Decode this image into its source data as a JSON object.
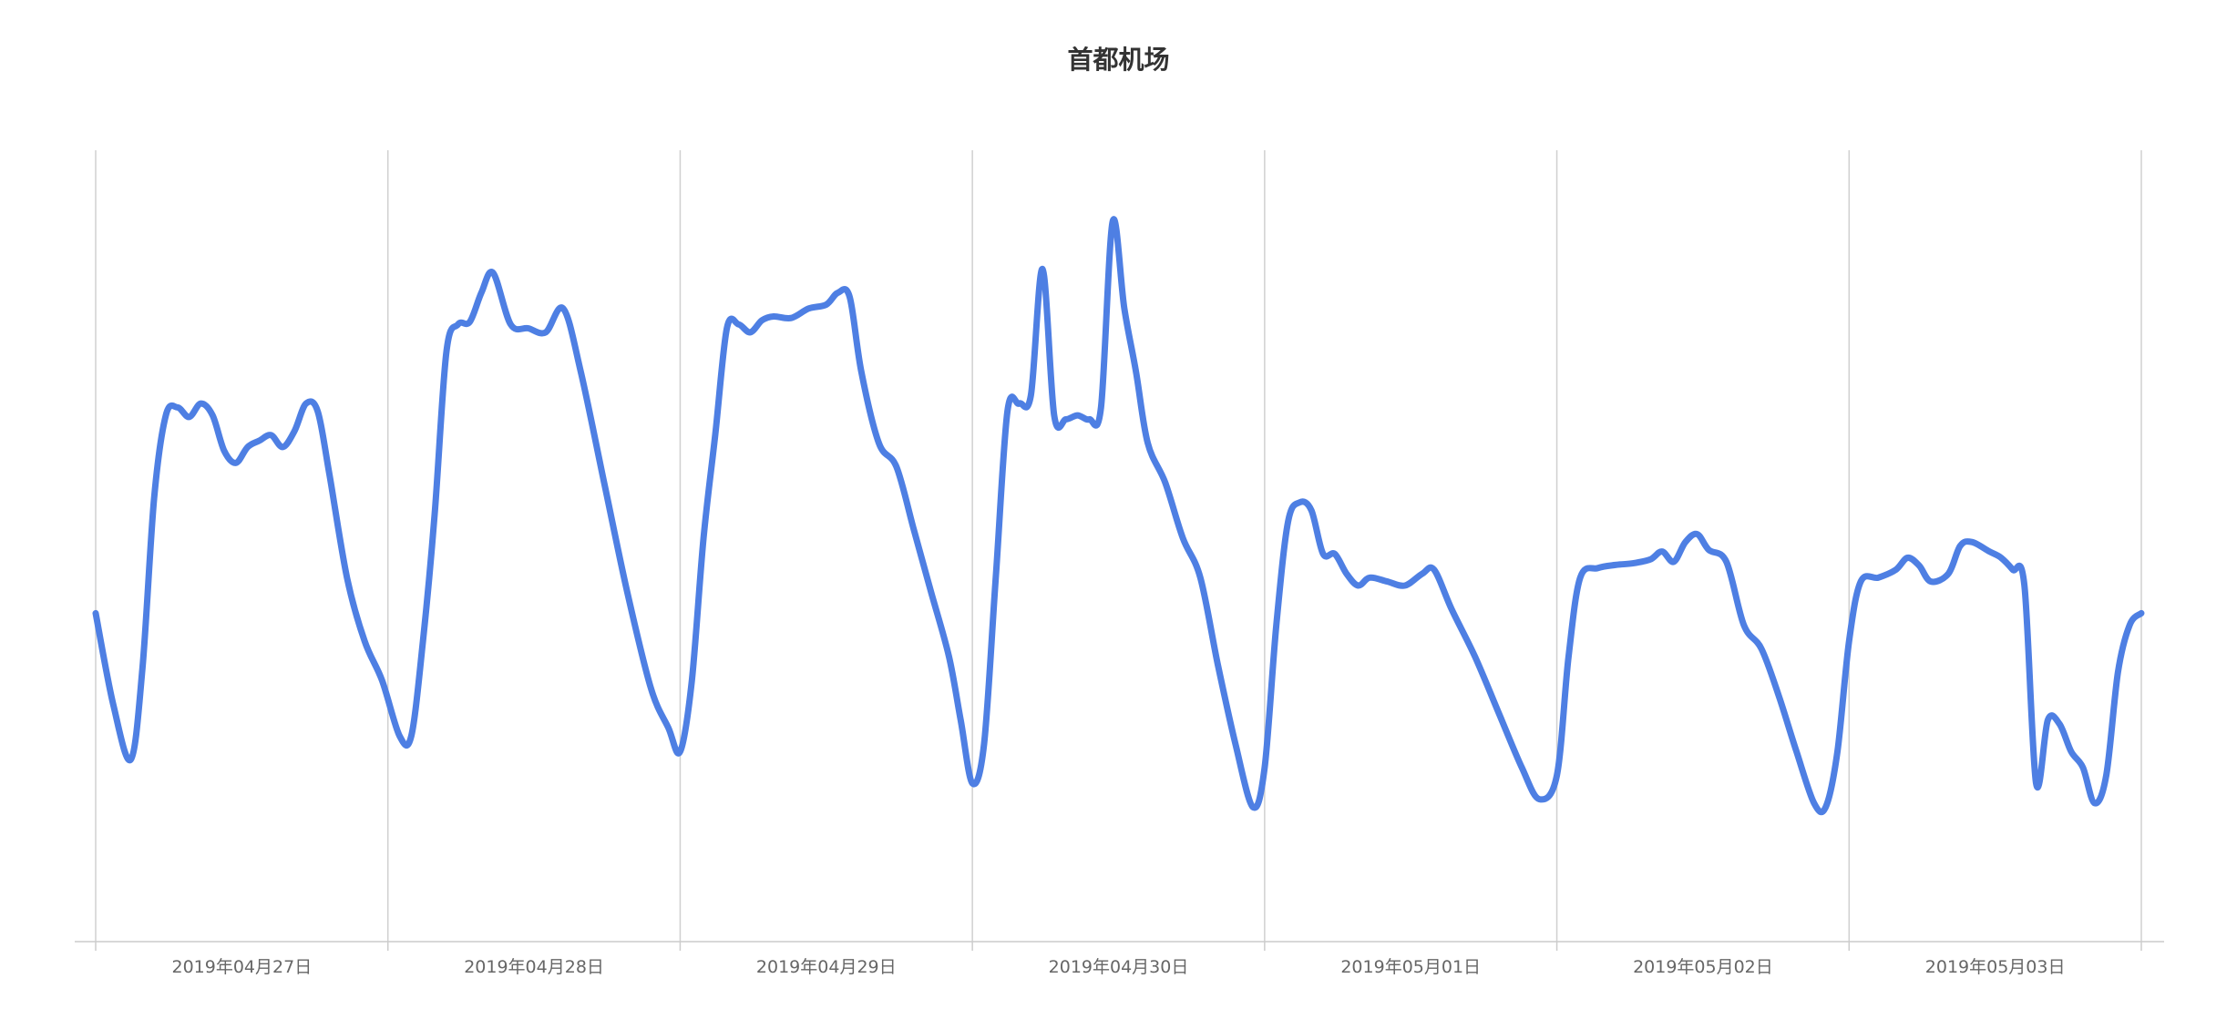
{
  "chart_data": {
    "type": "line",
    "title": "首都机场",
    "x_tick_labels": [
      "2019年04月27日",
      "2019年04月28日",
      "2019年04月29日",
      "2019年04月30日",
      "2019年05月01日",
      "2019年05月02日",
      "2019年05月03日"
    ],
    "x_range_days": [
      0,
      7
    ],
    "ylim": [
      0,
      100
    ],
    "grid": "vertical",
    "series": [
      {
        "color": "#4E7FE3",
        "points": [
          [
            0.0,
            41.5
          ],
          [
            0.06,
            30.0
          ],
          [
            0.12,
            23.0
          ],
          [
            0.16,
            34.5
          ],
          [
            0.2,
            56.0
          ],
          [
            0.24,
            66.5
          ],
          [
            0.28,
            67.5
          ],
          [
            0.32,
            66.3
          ],
          [
            0.36,
            68.0
          ],
          [
            0.4,
            66.5
          ],
          [
            0.44,
            62.0
          ],
          [
            0.48,
            60.5
          ],
          [
            0.52,
            62.5
          ],
          [
            0.56,
            63.3
          ],
          [
            0.6,
            64.0
          ],
          [
            0.64,
            62.5
          ],
          [
            0.68,
            64.5
          ],
          [
            0.72,
            68.0
          ],
          [
            0.76,
            67.0
          ],
          [
            0.8,
            59.0
          ],
          [
            0.86,
            46.0
          ],
          [
            0.92,
            38.0
          ],
          [
            0.98,
            33.0
          ],
          [
            1.04,
            26.0
          ],
          [
            1.08,
            26.0
          ],
          [
            1.12,
            38.0
          ],
          [
            1.16,
            54.0
          ],
          [
            1.2,
            74.5
          ],
          [
            1.24,
            78.0
          ],
          [
            1.28,
            78.3
          ],
          [
            1.32,
            82.0
          ],
          [
            1.36,
            84.5
          ],
          [
            1.42,
            78.0
          ],
          [
            1.48,
            77.5
          ],
          [
            1.54,
            77.0
          ],
          [
            1.6,
            80.0
          ],
          [
            1.66,
            72.0
          ],
          [
            1.74,
            58.0
          ],
          [
            1.82,
            44.0
          ],
          [
            1.9,
            32.0
          ],
          [
            1.96,
            27.0
          ],
          [
            2.0,
            24.0
          ],
          [
            2.04,
            33.0
          ],
          [
            2.08,
            51.0
          ],
          [
            2.12,
            64.0
          ],
          [
            2.16,
            77.5
          ],
          [
            2.2,
            78.0
          ],
          [
            2.24,
            77.0
          ],
          [
            2.28,
            78.5
          ],
          [
            2.32,
            79.0
          ],
          [
            2.38,
            78.8
          ],
          [
            2.44,
            80.0
          ],
          [
            2.5,
            80.5
          ],
          [
            2.54,
            82.0
          ],
          [
            2.58,
            81.5
          ],
          [
            2.62,
            72.0
          ],
          [
            2.68,
            63.0
          ],
          [
            2.74,
            60.0
          ],
          [
            2.8,
            52.0
          ],
          [
            2.86,
            44.0
          ],
          [
            2.92,
            36.0
          ],
          [
            2.96,
            28.0
          ],
          [
            3.0,
            20.0
          ],
          [
            3.04,
            25.0
          ],
          [
            3.08,
            46.0
          ],
          [
            3.12,
            67.0
          ],
          [
            3.16,
            68.0
          ],
          [
            3.2,
            69.0
          ],
          [
            3.24,
            85.0
          ],
          [
            3.28,
            66.5
          ],
          [
            3.32,
            66.0
          ],
          [
            3.36,
            66.5
          ],
          [
            3.4,
            66.0
          ],
          [
            3.44,
            67.5
          ],
          [
            3.48,
            91.0
          ],
          [
            3.52,
            80.0
          ],
          [
            3.56,
            72.0
          ],
          [
            3.6,
            63.0
          ],
          [
            3.66,
            58.0
          ],
          [
            3.72,
            51.0
          ],
          [
            3.78,
            46.0
          ],
          [
            3.84,
            35.0
          ],
          [
            3.9,
            25.0
          ],
          [
            3.96,
            17.0
          ],
          [
            4.0,
            22.0
          ],
          [
            4.04,
            40.0
          ],
          [
            4.08,
            53.0
          ],
          [
            4.12,
            55.5
          ],
          [
            4.16,
            54.5
          ],
          [
            4.2,
            49.0
          ],
          [
            4.24,
            49.0
          ],
          [
            4.28,
            46.5
          ],
          [
            4.32,
            45.0
          ],
          [
            4.36,
            46.0
          ],
          [
            4.42,
            45.5
          ],
          [
            4.48,
            45.0
          ],
          [
            4.54,
            46.5
          ],
          [
            4.58,
            47.0
          ],
          [
            4.64,
            42.0
          ],
          [
            4.72,
            36.0
          ],
          [
            4.8,
            29.0
          ],
          [
            4.88,
            22.0
          ],
          [
            4.94,
            18.0
          ],
          [
            5.0,
            21.0
          ],
          [
            5.04,
            36.0
          ],
          [
            5.08,
            46.0
          ],
          [
            5.14,
            47.2
          ],
          [
            5.2,
            47.6
          ],
          [
            5.26,
            47.8
          ],
          [
            5.32,
            48.3
          ],
          [
            5.36,
            49.3
          ],
          [
            5.4,
            48.0
          ],
          [
            5.44,
            50.5
          ],
          [
            5.48,
            51.5
          ],
          [
            5.52,
            49.5
          ],
          [
            5.58,
            48.0
          ],
          [
            5.64,
            40.0
          ],
          [
            5.7,
            37.0
          ],
          [
            5.76,
            31.0
          ],
          [
            5.82,
            24.0
          ],
          [
            5.88,
            17.5
          ],
          [
            5.92,
            17.0
          ],
          [
            5.96,
            24.0
          ],
          [
            6.0,
            38.0
          ],
          [
            6.04,
            45.5
          ],
          [
            6.1,
            46.0
          ],
          [
            6.16,
            47.0
          ],
          [
            6.2,
            48.5
          ],
          [
            6.24,
            47.5
          ],
          [
            6.28,
            45.5
          ],
          [
            6.34,
            46.5
          ],
          [
            6.38,
            50.0
          ],
          [
            6.42,
            50.5
          ],
          [
            6.48,
            49.3
          ],
          [
            6.52,
            48.5
          ],
          [
            6.56,
            47.0
          ],
          [
            6.6,
            45.0
          ],
          [
            6.64,
            20.0
          ],
          [
            6.68,
            28.0
          ],
          [
            6.72,
            27.5
          ],
          [
            6.76,
            24.0
          ],
          [
            6.8,
            22.0
          ],
          [
            6.84,
            17.5
          ],
          [
            6.88,
            21.0
          ],
          [
            6.92,
            34.0
          ],
          [
            6.96,
            40.0
          ],
          [
            7.0,
            41.5
          ]
        ]
      }
    ]
  }
}
